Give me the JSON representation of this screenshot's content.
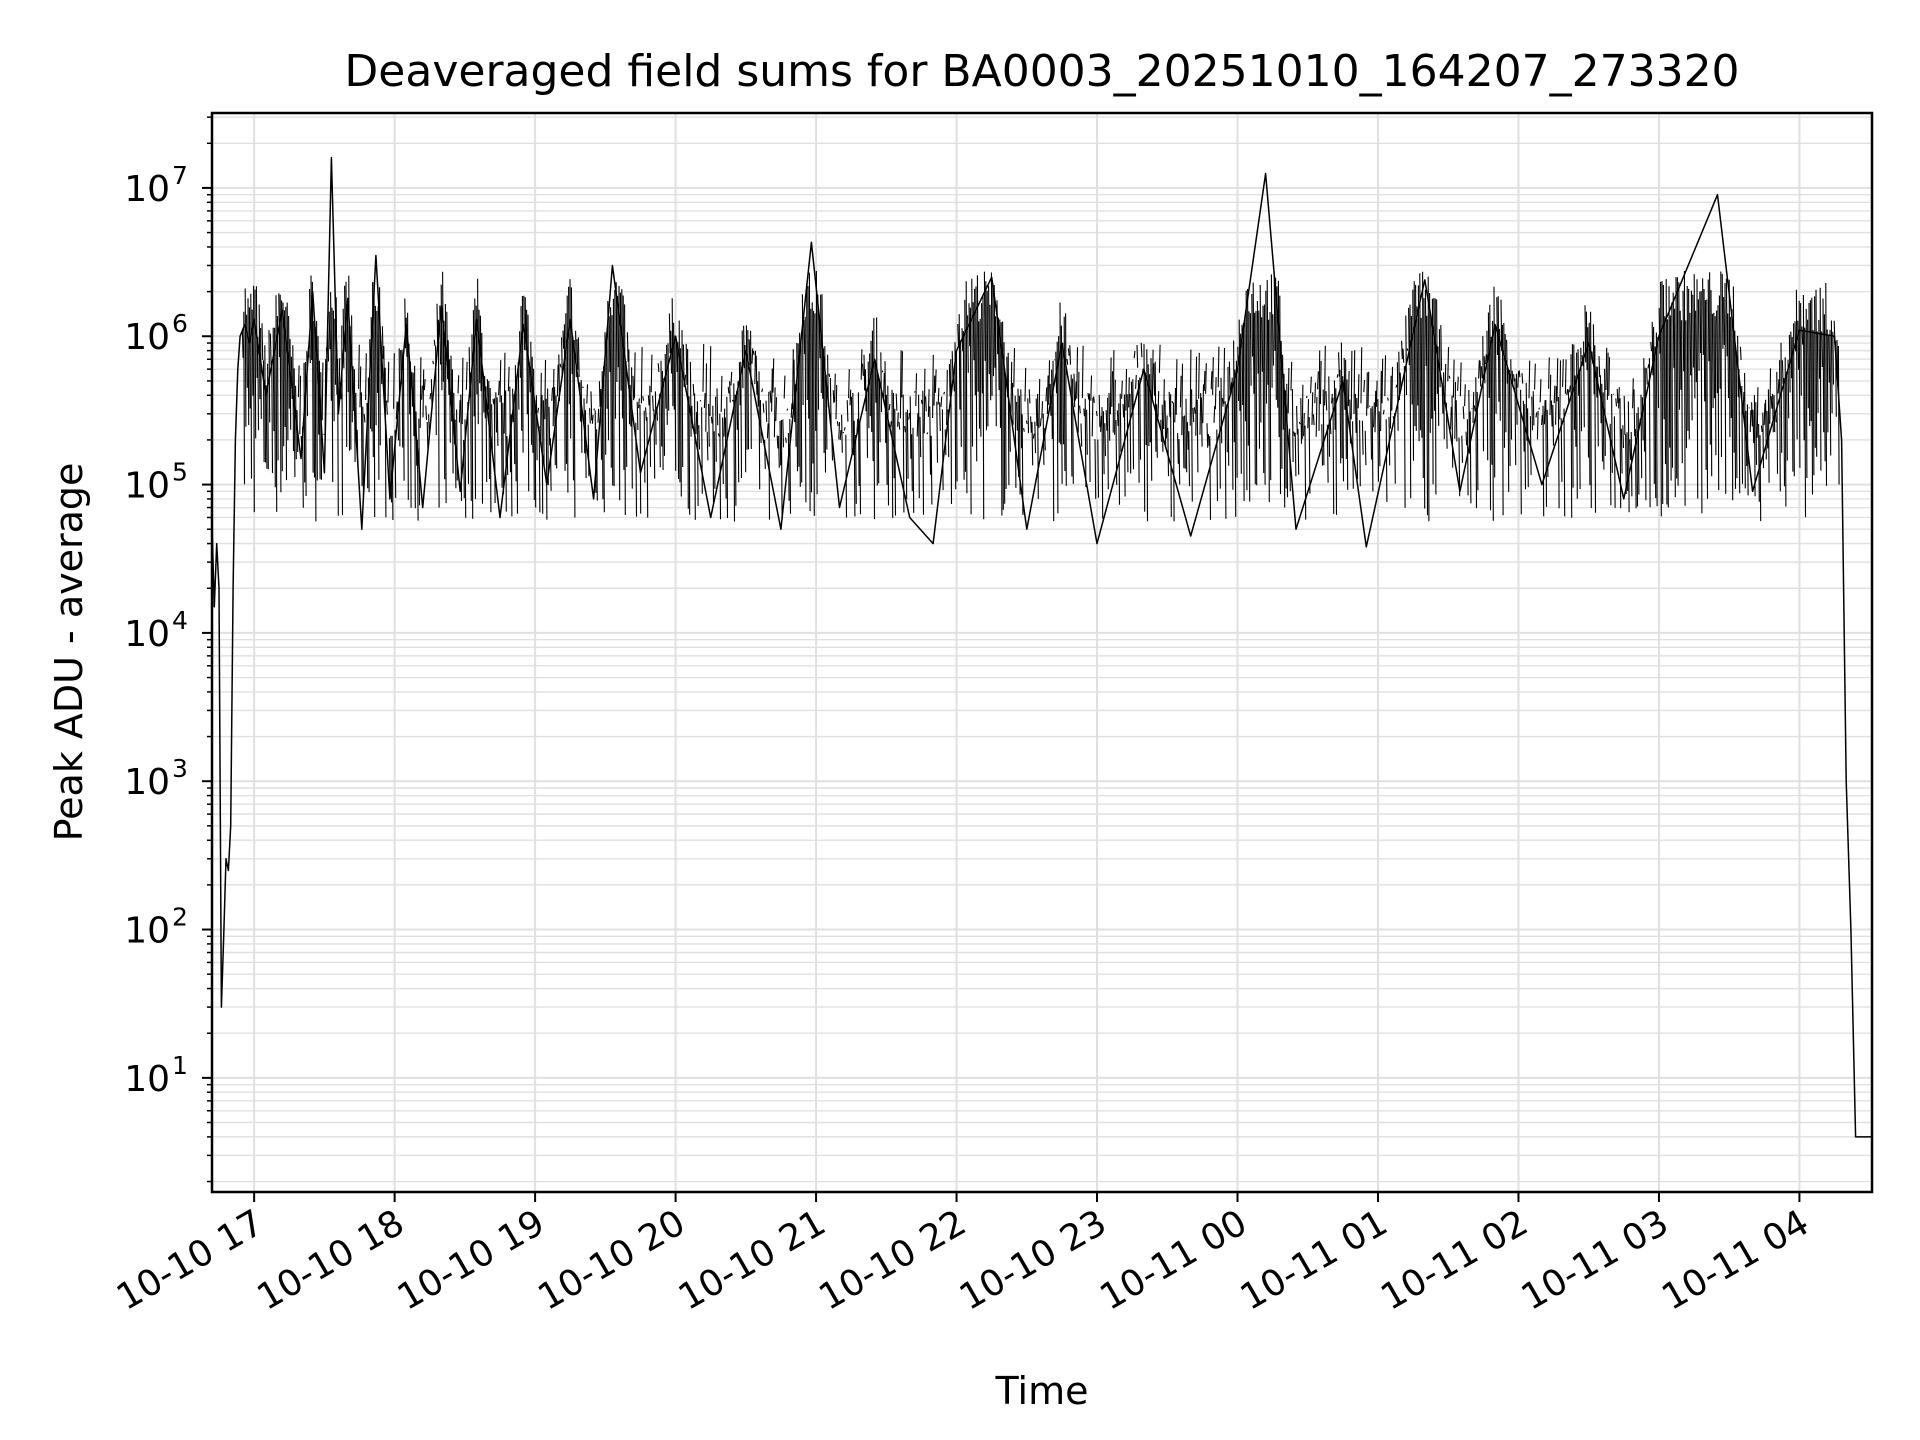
{
  "chart_data": {
    "type": "line",
    "title": "Deaveraged field sums for BA0003_20251010_164207_273320",
    "xlabel": "Time",
    "ylabel": "Peak ADU - average",
    "yscale": "log",
    "ylim": [
      1.7,
      32000000
    ],
    "xlim": [
      "2025-10-10 16:42",
      "2025-10-11 04:31"
    ],
    "grid": true,
    "line_color": "#000000",
    "grid_color": "#e0e0e0",
    "x_ticks": [
      {
        "label": "10-10 17",
        "t": "2025-10-10 17:00"
      },
      {
        "label": "10-10 18",
        "t": "2025-10-10 18:00"
      },
      {
        "label": "10-10 19",
        "t": "2025-10-10 19:00"
      },
      {
        "label": "10-10 20",
        "t": "2025-10-10 20:00"
      },
      {
        "label": "10-10 21",
        "t": "2025-10-10 21:00"
      },
      {
        "label": "10-10 22",
        "t": "2025-10-10 22:00"
      },
      {
        "label": "10-10 23",
        "t": "2025-10-10 23:00"
      },
      {
        "label": "10-11 00",
        "t": "2025-10-11 00:00"
      },
      {
        "label": "10-11 01",
        "t": "2025-10-11 01:00"
      },
      {
        "label": "10-11 02",
        "t": "2025-10-11 02:00"
      },
      {
        "label": "10-11 03",
        "t": "2025-10-11 03:00"
      },
      {
        "label": "10-11 04",
        "t": "2025-10-11 04:00"
      }
    ],
    "y_ticks": [
      {
        "base": "10",
        "exp": "1",
        "value": 10
      },
      {
        "base": "10",
        "exp": "2",
        "value": 100
      },
      {
        "base": "10",
        "exp": "3",
        "value": 1000
      },
      {
        "base": "10",
        "exp": "4",
        "value": 10000
      },
      {
        "base": "10",
        "exp": "5",
        "value": 100000
      },
      {
        "base": "10",
        "exp": "6",
        "value": 1000000
      },
      {
        "base": "10",
        "exp": "7",
        "value": 10000000
      }
    ],
    "series": [
      {
        "points": [
          [
            "2025-10-10 16:42",
            55000
          ],
          [
            "2025-10-10 16:43",
            15000
          ],
          [
            "2025-10-10 16:44",
            40000
          ],
          [
            "2025-10-10 16:45",
            20000
          ],
          [
            "2025-10-10 16:46",
            30
          ],
          [
            "2025-10-10 16:47",
            90
          ],
          [
            "2025-10-10 16:48",
            300
          ],
          [
            "2025-10-10 16:49",
            250
          ],
          [
            "2025-10-10 16:50",
            500
          ],
          [
            "2025-10-10 16:51",
            20000
          ],
          [
            "2025-10-10 16:52",
            200000
          ],
          [
            "2025-10-10 16:53",
            600000
          ],
          [
            "2025-10-10 16:54",
            1000000
          ],
          [
            "2025-10-10 16:56",
            1200000
          ],
          [
            "2025-10-10 16:58",
            900000
          ],
          [
            "2025-10-10 17:00",
            1300000
          ],
          [
            "2025-10-10 17:05",
            400000
          ],
          [
            "2025-10-10 17:12",
            1500000
          ],
          [
            "2025-10-10 17:20",
            150000
          ],
          [
            "2025-10-10 17:25",
            2000000
          ],
          [
            "2025-10-10 17:30",
            120000
          ],
          [
            "2025-10-10 17:33",
            16000000
          ],
          [
            "2025-10-10 17:36",
            300000
          ],
          [
            "2025-10-10 17:40",
            1800000
          ],
          [
            "2025-10-10 17:46",
            50000
          ],
          [
            "2025-10-10 17:52",
            3500000
          ],
          [
            "2025-10-10 17:58",
            80000
          ],
          [
            "2025-10-10 18:05",
            1200000
          ],
          [
            "2025-10-10 18:12",
            70000
          ],
          [
            "2025-10-10 18:20",
            1600000
          ],
          [
            "2025-10-10 18:28",
            90000
          ],
          [
            "2025-10-10 18:35",
            1300000
          ],
          [
            "2025-10-10 18:45",
            60000
          ],
          [
            "2025-10-10 18:55",
            1200000
          ],
          [
            "2025-10-10 19:05",
            100000
          ],
          [
            "2025-10-10 19:15",
            1300000
          ],
          [
            "2025-10-10 19:25",
            80000
          ],
          [
            "2025-10-10 19:33",
            3000000
          ],
          [
            "2025-10-10 19:45",
            120000
          ],
          [
            "2025-10-10 20:00",
            1000000
          ],
          [
            "2025-10-10 20:15",
            60000
          ],
          [
            "2025-10-10 20:30",
            800000
          ],
          [
            "2025-10-10 20:45",
            50000
          ],
          [
            "2025-10-10 20:58",
            4300000
          ],
          [
            "2025-10-10 21:10",
            70000
          ],
          [
            "2025-10-10 21:25",
            700000
          ],
          [
            "2025-10-10 21:40",
            60000
          ],
          [
            "2025-10-10 21:50",
            40000
          ],
          [
            "2025-10-10 22:00",
            800000
          ],
          [
            "2025-10-10 22:15",
            2500000
          ],
          [
            "2025-10-10 22:30",
            50000
          ],
          [
            "2025-10-10 22:45",
            900000
          ],
          [
            "2025-10-10 23:00",
            40000
          ],
          [
            "2025-10-10 23:20",
            600000
          ],
          [
            "2025-10-10 23:40",
            45000
          ],
          [
            "2025-10-11 00:00",
            600000
          ],
          [
            "2025-10-11 00:12",
            12500000
          ],
          [
            "2025-10-11 00:25",
            50000
          ],
          [
            "2025-10-11 00:45",
            500000
          ],
          [
            "2025-10-11 00:55",
            38000
          ],
          [
            "2025-10-11 01:05",
            200000
          ],
          [
            "2025-10-11 01:20",
            2400000
          ],
          [
            "2025-10-11 01:35",
            90000
          ],
          [
            "2025-10-11 01:50",
            1200000
          ],
          [
            "2025-10-11 02:10",
            100000
          ],
          [
            "2025-10-11 02:30",
            900000
          ],
          [
            "2025-10-11 02:45",
            80000
          ],
          [
            "2025-10-11 03:00",
            1000000
          ],
          [
            "2025-10-11 03:25",
            9000000
          ],
          [
            "2025-10-11 03:40",
            90000
          ],
          [
            "2025-10-11 04:00",
            1100000
          ],
          [
            "2025-10-11 04:15",
            1000000
          ],
          [
            "2025-10-11 04:18",
            200000
          ],
          [
            "2025-10-11 04:20",
            1000
          ],
          [
            "2025-10-11 04:22",
            100
          ],
          [
            "2025-10-11 04:24",
            4
          ],
          [
            "2025-10-11 04:31",
            4
          ]
        ]
      }
    ]
  }
}
